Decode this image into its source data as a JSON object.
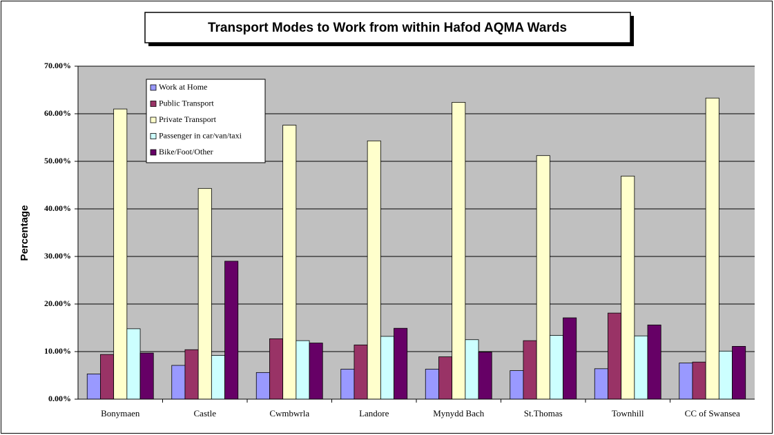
{
  "chart_data": {
    "type": "bar",
    "title": "Transport Modes to Work from within Hafod AQMA Wards",
    "y_label": "Percentage",
    "categories": [
      "Bonymaen",
      "Castle",
      "Cwmbwrla",
      "Landore",
      "Mynydd Bach",
      "St.Thomas",
      "Townhill",
      "CC of Swansea"
    ],
    "series": [
      {
        "name": "Work at Home",
        "color": "#9999ff",
        "values": [
          5.3,
          7.1,
          5.6,
          6.3,
          6.3,
          6.0,
          6.4,
          7.6
        ]
      },
      {
        "name": "Public Transport",
        "color": "#993366",
        "values": [
          9.4,
          10.4,
          12.7,
          11.4,
          8.9,
          12.3,
          18.1,
          7.8
        ]
      },
      {
        "name": "Private Transport",
        "color": "#ffffcc",
        "values": [
          61.0,
          44.3,
          57.6,
          54.3,
          62.4,
          51.2,
          46.9,
          63.3
        ]
      },
      {
        "name": "Passenger in car/van/taxi",
        "color": "#ccffff",
        "values": [
          14.8,
          9.2,
          12.3,
          13.2,
          12.5,
          13.4,
          13.3,
          10.1
        ]
      },
      {
        "name": "Bike/Foot/Other",
        "color": "#660066",
        "values": [
          9.7,
          29.0,
          11.8,
          14.9,
          9.9,
          17.1,
          15.6,
          11.1
        ]
      }
    ],
    "ylim": [
      0,
      70
    ],
    "yticks": [
      {
        "value": 0,
        "label": "0.00%"
      },
      {
        "value": 10,
        "label": "10.00%"
      },
      {
        "value": 20,
        "label": "20.00%"
      },
      {
        "value": 30,
        "label": "30.00%"
      },
      {
        "value": 40,
        "label": "40.00%"
      },
      {
        "value": 50,
        "label": "50.00%"
      },
      {
        "value": 60,
        "label": "60.00%"
      },
      {
        "value": 70,
        "label": "70.00%"
      }
    ],
    "grid": true,
    "legend": "upper-left"
  }
}
